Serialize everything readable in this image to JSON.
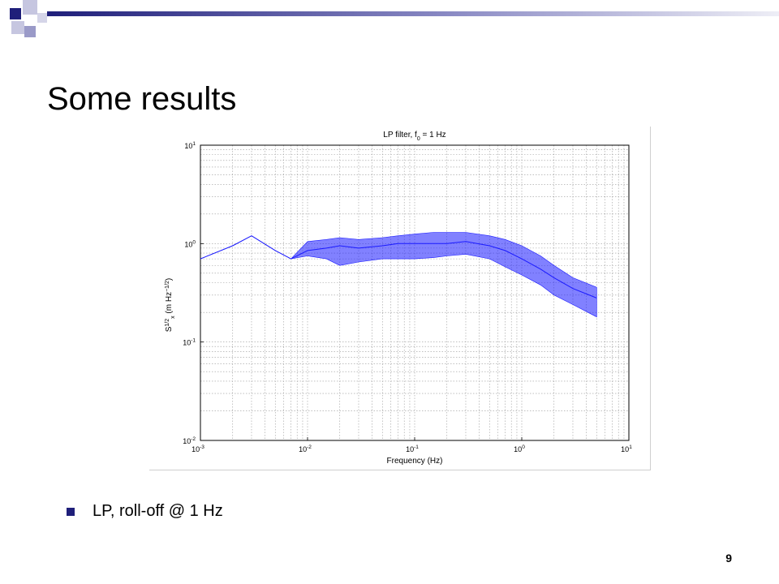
{
  "slide": {
    "title": "Some results",
    "bullet": "LP, roll-off @ 1 Hz",
    "page_number": "9",
    "accent_color": "#1f1f7a"
  },
  "chart_data": {
    "type": "line",
    "title": "LP filter, f",
    "title_sub": "0",
    "title_tail": " = 1 Hz",
    "xlabel": "Frequency (Hz)",
    "ylabel": "S",
    "ylabel_sup": "1/2",
    "ylabel_sub": "x",
    "ylabel_units": " (m Hz",
    "ylabel_units_sup": "−1/2",
    "ylabel_units_tail": ")",
    "xscale": "log",
    "yscale": "log",
    "xlim": [
      0.001,
      10
    ],
    "ylim": [
      0.01,
      10
    ],
    "grid": true,
    "line_color": "#1a1aff",
    "x_ticks": [
      {
        "base": "10",
        "exp": "-3"
      },
      {
        "base": "10",
        "exp": "-2"
      },
      {
        "base": "10",
        "exp": "-1"
      },
      {
        "base": "10",
        "exp": "0"
      },
      {
        "base": "10",
        "exp": "1"
      }
    ],
    "y_ticks": [
      {
        "base": "10",
        "exp": "-2"
      },
      {
        "base": "10",
        "exp": "-1"
      },
      {
        "base": "10",
        "exp": "0"
      },
      {
        "base": "10",
        "exp": "1"
      }
    ],
    "series": [
      {
        "x": [
          0.001,
          0.002,
          0.003,
          0.005,
          0.007,
          0.01,
          0.015,
          0.02,
          0.03,
          0.05,
          0.07,
          0.1,
          0.15,
          0.2,
          0.3,
          0.5,
          0.7,
          1.0,
          1.5,
          2.0,
          3.0,
          5.0
        ],
        "y": [
          0.7,
          0.95,
          1.2,
          0.85,
          0.7,
          0.85,
          0.9,
          0.95,
          0.9,
          0.95,
          1.0,
          1.0,
          1.0,
          1.0,
          1.05,
          0.95,
          0.85,
          0.7,
          0.55,
          0.45,
          0.35,
          0.28
        ],
        "band_low": [
          0.7,
          0.95,
          1.2,
          0.85,
          0.7,
          0.75,
          0.7,
          0.6,
          0.65,
          0.7,
          0.7,
          0.7,
          0.72,
          0.75,
          0.78,
          0.7,
          0.58,
          0.48,
          0.38,
          0.3,
          0.24,
          0.18
        ],
        "band_high": [
          0.7,
          0.95,
          1.2,
          0.85,
          0.7,
          1.05,
          1.1,
          1.15,
          1.1,
          1.15,
          1.2,
          1.25,
          1.3,
          1.3,
          1.3,
          1.2,
          1.1,
          0.95,
          0.75,
          0.6,
          0.45,
          0.36
        ]
      }
    ]
  }
}
